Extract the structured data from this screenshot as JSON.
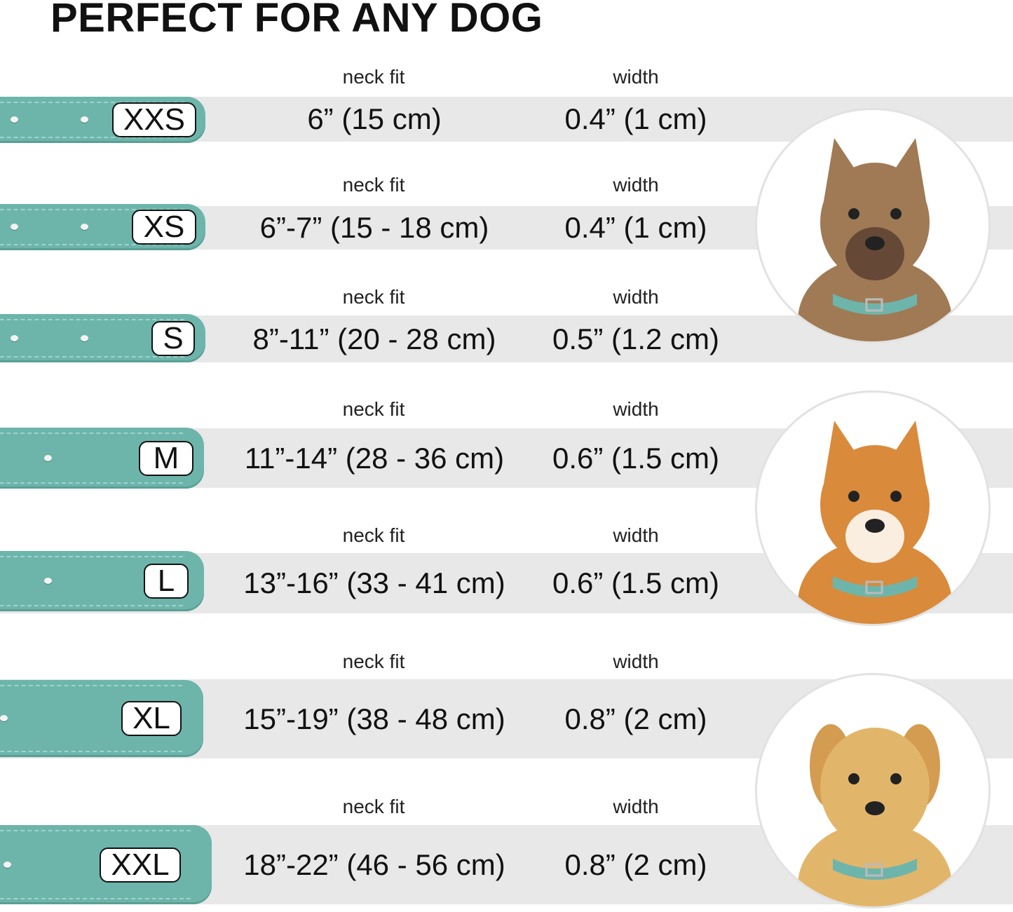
{
  "title": "PERFECT FOR ANY DOG",
  "neck_label": "neck fit",
  "width_label": "width",
  "colors": {
    "collar": "#6db5ab",
    "band": "#e8e8e8"
  },
  "sizes": [
    {
      "size": "XXS",
      "neck_fit": "6” (15 cm)",
      "width": "0.4” (1 cm)"
    },
    {
      "size": "XS",
      "neck_fit": "6”-7” (15 - 18 cm)",
      "width": "0.4” (1 cm)"
    },
    {
      "size": "S",
      "neck_fit": "8”-11” (20 - 28 cm)",
      "width": "0.5” (1.2 cm)"
    },
    {
      "size": "M",
      "neck_fit": "11”-14” (28 - 36 cm)",
      "width": "0.6” (1.5 cm)"
    },
    {
      "size": "L",
      "neck_fit": "13”-16” (33 - 41 cm)",
      "width": "0.6” (1.5 cm)"
    },
    {
      "size": "XL",
      "neck_fit": "15”-19” (38 - 48 cm)",
      "width": "0.8” (2 cm)"
    },
    {
      "size": "XXL",
      "neck_fit": "18”-22” (46 - 56 cm)",
      "width": "0.8” (2 cm)"
    }
  ],
  "dog_images": [
    "small-terrier-photo",
    "corgi-photo",
    "labrador-photo"
  ]
}
